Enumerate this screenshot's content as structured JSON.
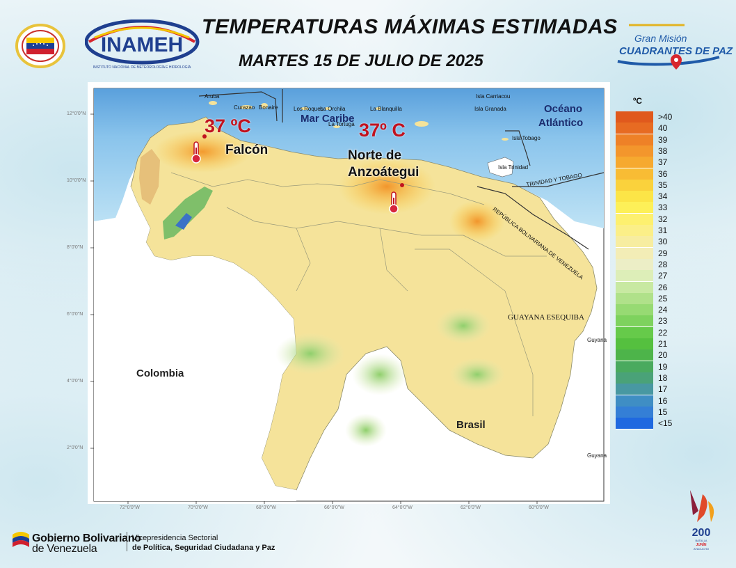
{
  "header": {
    "title": "TEMPERATURAS MÁXIMAS ESTIMADAS",
    "date": "MARTES 15 DE JULIO DE 2025",
    "inameh_logo": "INAMEH",
    "inameh_sub": "INSTITUTO NACIONAL DE METEOROLOGÍA E HIDROLOGÍA",
    "gran_mision_line1": "Gran Misión",
    "gran_mision_line2": "CUADRANTES DE PAZ"
  },
  "map": {
    "seas": [
      "Mar Caribe",
      "Océano",
      "Atlántico"
    ],
    "countries": {
      "colombia": "Colombia",
      "brasil": "Brasil",
      "guayana": "GUAYANA ESEQUIBA",
      "trinidad": "TRINIDAD Y TOBAGO",
      "venezuela_border": "REPÚBLICA BOLIVARIANA DE VENEZUELA"
    },
    "islands": {
      "aruba": "Aruba",
      "curazao": "Curazao",
      "bonaire": "Bonaire",
      "los_roques": "Los Roques",
      "la_orchila": "La Orchila",
      "la_blanquilla": "La Blanquilla",
      "la_tortuga": "La Tortuga",
      "carriacou": "Isla Carriacou",
      "granada": "Isla Granada",
      "tobago": "Isla Tobago",
      "trinidad": "Isla Trinidad",
      "guyana_1": "Guyana",
      "guyana_2": "Guyana"
    },
    "highlights": [
      {
        "temp": "37 ºC",
        "region": "Falcón"
      },
      {
        "temp": "37º C",
        "region_line1": "Norte de",
        "region_line2": "Anzoátegui"
      }
    ],
    "lat_labels": [
      "12°0'0\"N",
      "10°0'0\"N",
      "8°0'0\"N",
      "6°0'0\"N",
      "4°0'0\"N",
      "2°0'0\"N"
    ],
    "lon_labels": [
      "72°0'0\"W",
      "70°0'0\"W",
      "68°0'0\"W",
      "66°0'0\"W",
      "64°0'0\"W",
      "62°0'0\"W",
      "60°0'0\"W"
    ]
  },
  "legend": {
    "unit": "ºC",
    "entries": [
      {
        "label": ">40",
        "color": "#e0591d"
      },
      {
        "label": "40",
        "color": "#e76b22"
      },
      {
        "label": "39",
        "color": "#ee8127"
      },
      {
        "label": "38",
        "color": "#f3962c"
      },
      {
        "label": "37",
        "color": "#f6a92f"
      },
      {
        "label": "36",
        "color": "#f8bc34"
      },
      {
        "label": "35",
        "color": "#fad23c"
      },
      {
        "label": "34",
        "color": "#fce547"
      },
      {
        "label": "33",
        "color": "#fdf058"
      },
      {
        "label": "32",
        "color": "#fdf06f"
      },
      {
        "label": "31",
        "color": "#fbef88"
      },
      {
        "label": "30",
        "color": "#f7eda0"
      },
      {
        "label": "29",
        "color": "#f3edb6"
      },
      {
        "label": "28",
        "color": "#eceec6"
      },
      {
        "label": "27",
        "color": "#ddeeb8"
      },
      {
        "label": "26",
        "color": "#c8e9a2"
      },
      {
        "label": "25",
        "color": "#b0e18a"
      },
      {
        "label": "24",
        "color": "#97da73"
      },
      {
        "label": "23",
        "color": "#7ed25e"
      },
      {
        "label": "22",
        "color": "#66ca4a"
      },
      {
        "label": "21",
        "color": "#55c03f"
      },
      {
        "label": "20",
        "color": "#4db44a"
      },
      {
        "label": "19",
        "color": "#4aaa5e"
      },
      {
        "label": "18",
        "color": "#4aa278"
      },
      {
        "label": "17",
        "color": "#4898a2"
      },
      {
        "label": "16",
        "color": "#3f8ec4"
      },
      {
        "label": "15",
        "color": "#347fd6"
      },
      {
        "label": "<15",
        "color": "#1f69e0"
      }
    ]
  },
  "footer": {
    "gob_line1_bold": "Gobierno Bolivariano",
    "gob_line2": "de Venezuela",
    "vice_line1": "Vicepresidencia Sectorial",
    "vice_line2": "de Política, Seguridad Ciudadana y Paz",
    "logo_200": "200",
    "logo_200_sub1": "BATALLA",
    "logo_200_sub2": "JUNÍN",
    "logo_200_sub3": "AYACUCHO"
  }
}
